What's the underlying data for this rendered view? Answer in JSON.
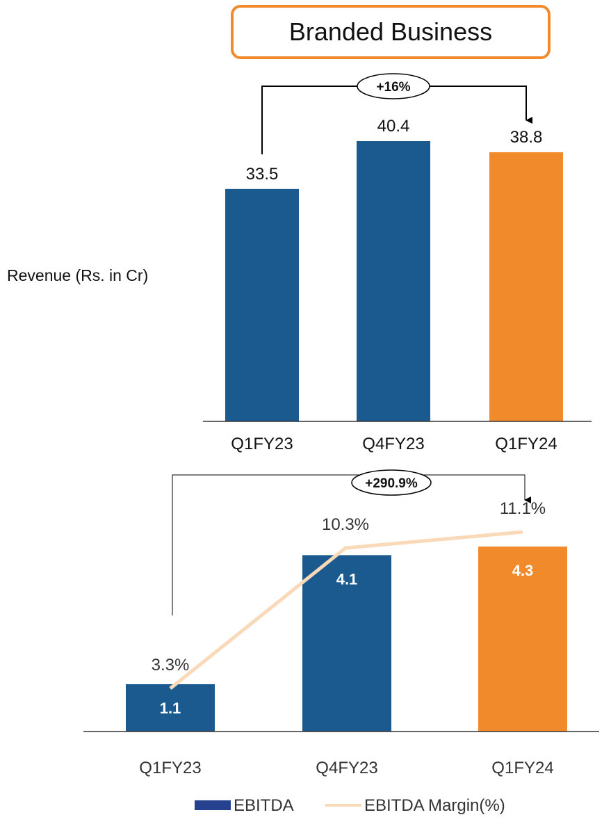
{
  "title": "Branded Business",
  "chart_data": [
    {
      "type": "bar",
      "ylabel": "Revenue (Rs. in Cr)",
      "categories": [
        "Q1FY23",
        "Q4FY23",
        "Q1FY24"
      ],
      "values": [
        33.5,
        40.4,
        38.8
      ],
      "value_labels": [
        "33.5",
        "40.4",
        "38.8"
      ],
      "ylim": [
        0,
        40.4
      ],
      "growth_label": "+16%",
      "grid": false,
      "colors": [
        "#1B5A8E",
        "#1B5A8E",
        "#F18A2B"
      ]
    },
    {
      "type": "bar",
      "categories": [
        "Q1FY23",
        "Q4FY23",
        "Q1FY24"
      ],
      "series": [
        {
          "name": "EBITDA",
          "type": "bar",
          "values": [
            1.1,
            4.1,
            4.3
          ],
          "value_labels": [
            "1.1",
            "4.1",
            "4.3"
          ]
        },
        {
          "name": "EBITDA Margin(%)",
          "type": "line",
          "values": [
            3.3,
            10.3,
            11.1
          ],
          "value_labels": [
            "3.3%",
            "10.3%",
            "11.1%"
          ]
        }
      ],
      "growth_label": "+290.9%",
      "legend": "bottom",
      "grid": false,
      "colors": {
        "bar": "#1B5A8E",
        "highlight": "#F18A2B",
        "line": "#F9D9B8",
        "legend_bar": "#25418F"
      }
    }
  ]
}
